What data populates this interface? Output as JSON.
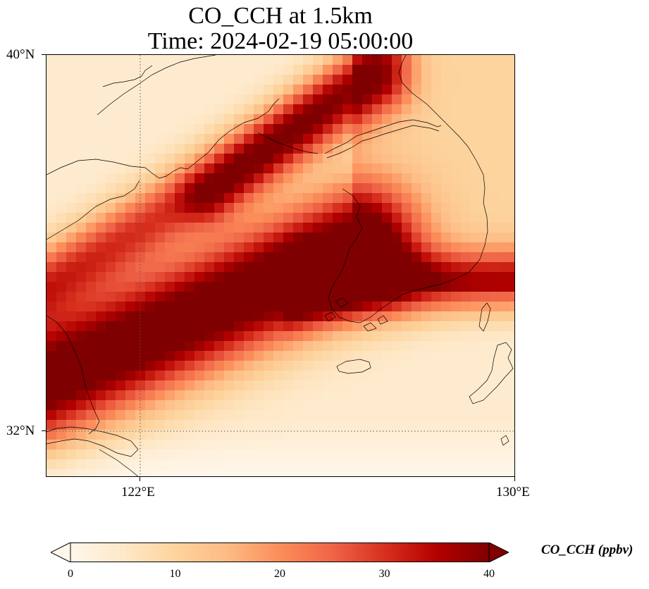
{
  "title": {
    "line1": "CO_CCH at 1.5km",
    "line2": "Time: 2024-02-19 05:00:00"
  },
  "map": {
    "lat_labels": [
      "40°N",
      "32°N"
    ],
    "lon_labels": [
      "122°E",
      "130°E"
    ],
    "extent": {
      "lon": [
        120,
        130
      ],
      "lat": [
        31,
        40
      ]
    },
    "gridlines": {
      "lon": 122,
      "lat": 32
    }
  },
  "colorbar": {
    "label": "CO_CCH (ppbv)",
    "ticks": [
      "0",
      "10",
      "20",
      "30",
      "40"
    ],
    "range": [
      0,
      40
    ],
    "extend": "both",
    "colormap": "OrRd",
    "colors": [
      "#fff7ec",
      "#fee8c8",
      "#fdd49e",
      "#fdbb84",
      "#fc8d59",
      "#ef6548",
      "#d7301f",
      "#b30000",
      "#7f0000"
    ]
  },
  "plume": {
    "description_free_fields": true,
    "max_value": 40
  }
}
